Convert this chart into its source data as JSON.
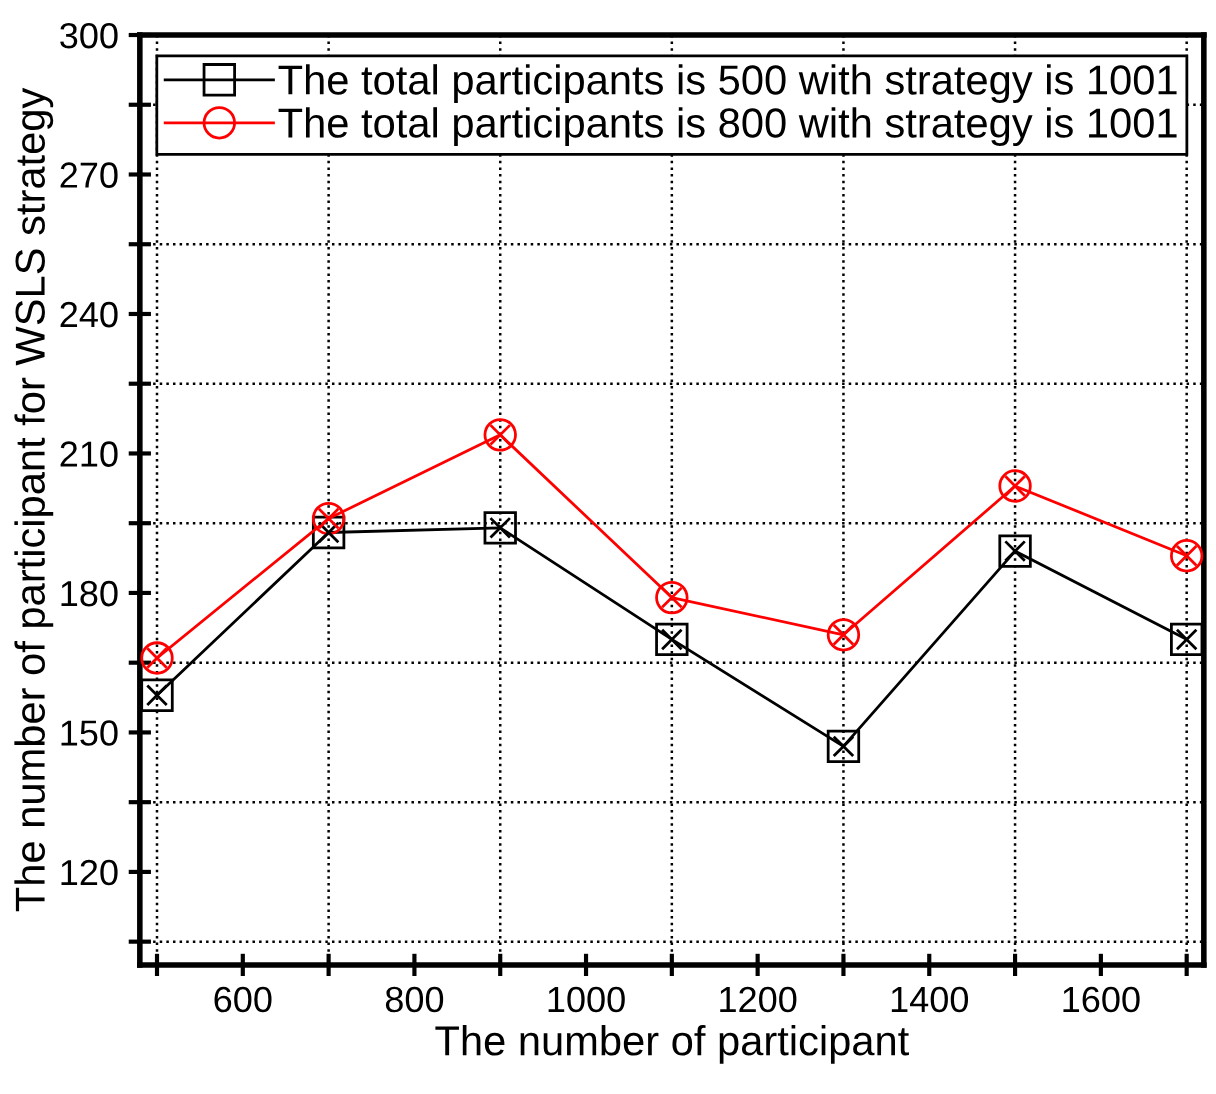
{
  "chart_data": {
    "type": "line",
    "xlabel": "The number of participant",
    "ylabel": "The number of participant for WSLS strategy",
    "x": [
      500,
      700,
      900,
      1100,
      1300,
      1500,
      1700
    ],
    "series": [
      {
        "name": "The total participants is 500 with strategy is 1001",
        "color": "#000000",
        "marker": "square",
        "values": [
          158,
          193,
          194,
          170,
          147,
          189,
          170
        ]
      },
      {
        "name": "The total participants is 800 with strategy is 1001",
        "color": "#ff0000",
        "marker": "circle",
        "values": [
          166,
          196,
          214,
          179,
          171,
          203,
          188
        ]
      }
    ],
    "xlim": [
      480,
      1720
    ],
    "xticks": [
      {
        "value": 500,
        "label": null
      },
      600,
      {
        "value": 700,
        "label": null
      },
      800,
      {
        "value": 900,
        "label": null
      },
      1000,
      {
        "value": 1100,
        "label": null
      },
      1200,
      {
        "value": 1300,
        "label": null
      },
      1400,
      {
        "value": 1500,
        "label": null
      },
      1600,
      {
        "value": 1700,
        "label": null
      }
    ],
    "ylim": [
      100,
      300
    ],
    "yticks": [
      {
        "value": 105,
        "label": null
      },
      120,
      {
        "value": 135,
        "label": null
      },
      150,
      {
        "value": 165,
        "label": null
      },
      180,
      {
        "value": 195,
        "label": null
      },
      210,
      {
        "value": 225,
        "label": null
      },
      240,
      {
        "value": 255,
        "label": null
      },
      270,
      {
        "value": 285,
        "label": null
      },
      300
    ],
    "grid": true,
    "legend": "top",
    "line_style": "solid"
  }
}
